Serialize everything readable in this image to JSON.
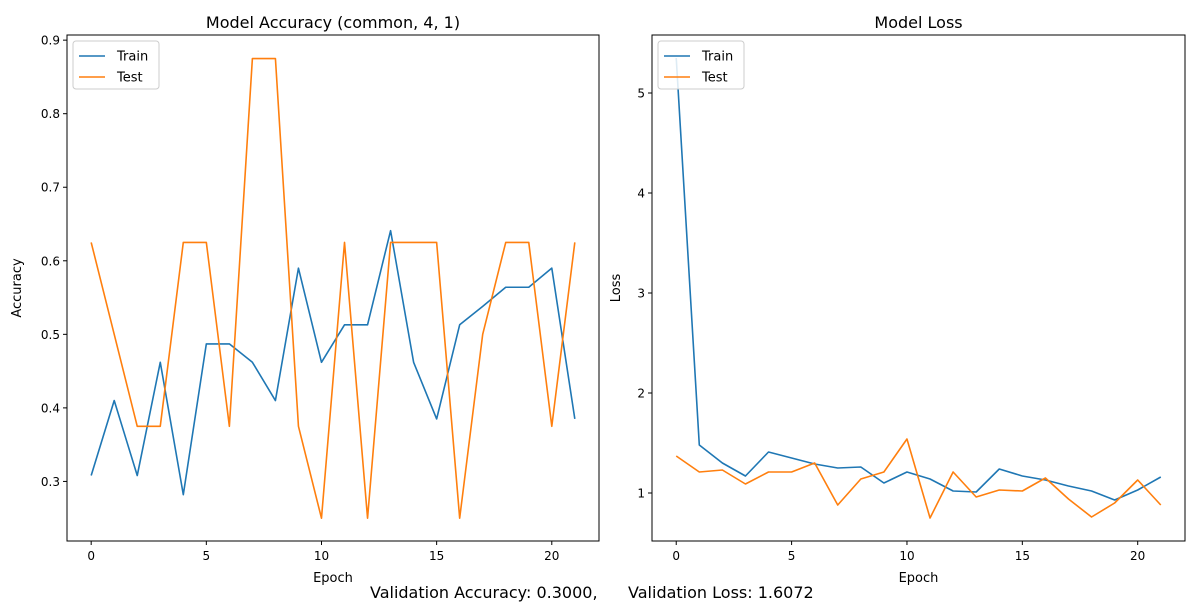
{
  "footer": {
    "accuracy_text": "Validation Accuracy: 0.3000,",
    "loss_text": "Validation Loss: 1.6072"
  },
  "chart_data": [
    {
      "type": "line",
      "title": "Model Accuracy (common, 4, 1)",
      "xlabel": "Epoch",
      "ylabel": "Accuracy",
      "xlim": [
        -1.05,
        22.05
      ],
      "ylim": [
        0.219,
        0.907
      ],
      "xticks": [
        0,
        5,
        10,
        15,
        20
      ],
      "yticks": [
        0.3,
        0.4,
        0.5,
        0.6,
        0.7,
        0.8,
        0.9
      ],
      "ytick_labels": [
        "0.3",
        "0.4",
        "0.5",
        "0.6",
        "0.7",
        "0.8",
        "0.9"
      ],
      "legend": "upper-left",
      "grid": false,
      "x": [
        0,
        1,
        2,
        3,
        4,
        5,
        6,
        7,
        8,
        9,
        10,
        11,
        12,
        13,
        14,
        15,
        16,
        17,
        18,
        19,
        20,
        21
      ],
      "series": [
        {
          "name": "Train",
          "color": "#1f77b4",
          "values": [
            0.308,
            0.41,
            0.308,
            0.462,
            0.282,
            0.487,
            0.487,
            0.462,
            0.41,
            0.59,
            0.462,
            0.513,
            0.513,
            0.641,
            0.462,
            0.385,
            0.513,
            0.538,
            0.564,
            0.564,
            0.59,
            0.385
          ]
        },
        {
          "name": "Test",
          "color": "#ff7f0e",
          "values": [
            0.625,
            0.5,
            0.375,
            0.375,
            0.625,
            0.625,
            0.375,
            0.875,
            0.875,
            0.375,
            0.25,
            0.625,
            0.25,
            0.625,
            0.625,
            0.625,
            0.25,
            0.5,
            0.625,
            0.625,
            0.375,
            0.625
          ]
        }
      ]
    },
    {
      "type": "line",
      "title": "Model Loss",
      "xlabel": "Epoch",
      "ylabel": "Loss",
      "xlim": [
        -1.05,
        22.05
      ],
      "ylim": [
        0.52,
        5.58
      ],
      "xticks": [
        0,
        5,
        10,
        15,
        20
      ],
      "yticks": [
        1,
        2,
        3,
        4,
        5
      ],
      "ytick_labels": [
        "1",
        "2",
        "3",
        "4",
        "5"
      ],
      "legend": "upper-left",
      "grid": false,
      "x": [
        0,
        1,
        2,
        3,
        4,
        5,
        6,
        7,
        8,
        9,
        10,
        11,
        12,
        13,
        14,
        15,
        16,
        17,
        18,
        19,
        20,
        21
      ],
      "series": [
        {
          "name": "Train",
          "color": "#1f77b4",
          "values": [
            5.35,
            1.48,
            1.3,
            1.17,
            1.41,
            1.35,
            1.29,
            1.25,
            1.26,
            1.1,
            1.21,
            1.14,
            1.02,
            1.01,
            1.24,
            1.17,
            1.13,
            1.07,
            1.02,
            0.93,
            1.03,
            1.16
          ]
        },
        {
          "name": "Test",
          "color": "#ff7f0e",
          "values": [
            1.37,
            1.21,
            1.23,
            1.09,
            1.21,
            1.21,
            1.3,
            0.88,
            1.14,
            1.21,
            1.54,
            0.75,
            1.21,
            0.96,
            1.03,
            1.02,
            1.15,
            0.94,
            0.76,
            0.9,
            1.13,
            0.88
          ]
        }
      ]
    }
  ]
}
